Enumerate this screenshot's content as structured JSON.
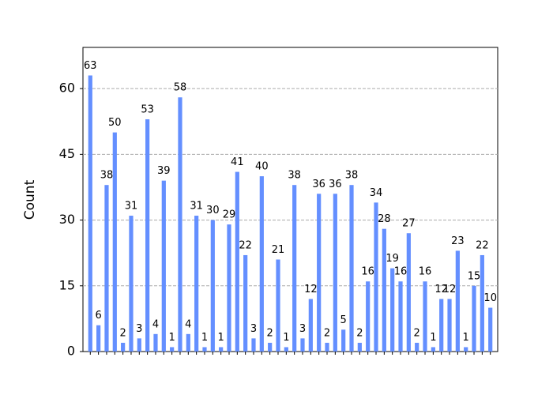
{
  "chart_data": {
    "type": "bar",
    "ylabel": "Count",
    "categories": [
      null,
      null,
      null,
      null,
      null,
      null,
      null,
      null,
      null,
      null,
      null,
      null,
      null,
      null,
      null,
      null,
      null,
      null,
      null,
      null,
      null,
      null,
      null,
      null,
      null,
      null,
      null,
      null,
      null,
      null,
      null,
      null,
      null,
      null,
      null,
      null,
      null,
      null,
      null,
      null,
      null,
      null,
      null,
      null,
      null,
      null,
      null,
      null,
      null,
      null
    ],
    "values": [
      63,
      6,
      38,
      50,
      2,
      31,
      3,
      53,
      4,
      39,
      1,
      58,
      4,
      31,
      1,
      30,
      1,
      29,
      41,
      22,
      3,
      40,
      2,
      21,
      1,
      38,
      3,
      12,
      36,
      2,
      36,
      5,
      38,
      2,
      16,
      34,
      28,
      19,
      16,
      27,
      2,
      16,
      1,
      12,
      12,
      23,
      1,
      15,
      22,
      10
    ],
    "color": "#648fff",
    "ylim": [
      0,
      69.4
    ],
    "yticks": [
      0,
      15,
      30,
      45,
      60
    ],
    "grid": true
  }
}
